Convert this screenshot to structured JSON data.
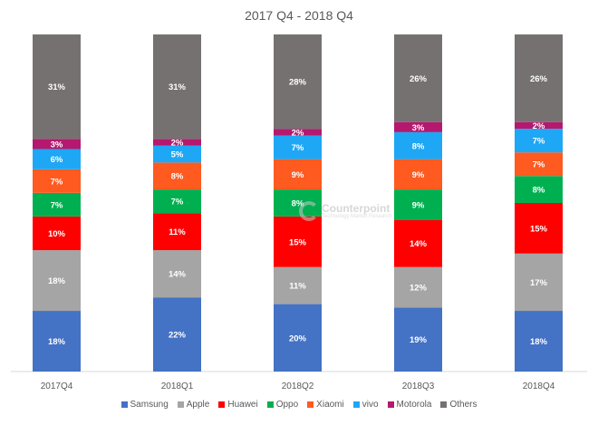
{
  "chart_data": {
    "type": "bar",
    "stacked": true,
    "title": "2017 Q4 - 2018 Q4",
    "categories": [
      "2017Q4",
      "2018Q1",
      "2018Q2",
      "2018Q3",
      "2018Q4"
    ],
    "series": [
      {
        "name": "Samsung",
        "color": "#4472c4",
        "label_color": "#ffffff",
        "values": [
          18,
          22,
          20,
          19,
          18
        ]
      },
      {
        "name": "Apple",
        "color": "#a5a5a5",
        "label_color": "#ffffff",
        "values": [
          18,
          14,
          11,
          12,
          17
        ]
      },
      {
        "name": "Huawei",
        "color": "#ff0000",
        "label_color": "#ffffff",
        "values": [
          10,
          11,
          15,
          14,
          15
        ]
      },
      {
        "name": "Oppo",
        "color": "#00b050",
        "label_color": "#ffffff",
        "values": [
          7,
          7,
          8,
          9,
          8
        ]
      },
      {
        "name": "Xiaomi",
        "color": "#ff5a1f",
        "label_color": "#ffffff",
        "values": [
          7,
          8,
          9,
          9,
          7
        ]
      },
      {
        "name": "vivo",
        "color": "#1ea7f5",
        "label_color": "#ffffff",
        "values": [
          6,
          5,
          7,
          8,
          7
        ]
      },
      {
        "name": "Motorola",
        "color": "#b5186f",
        "label_color": "#ffffff",
        "values": [
          3,
          2,
          2,
          3,
          2
        ]
      },
      {
        "name": "Others",
        "color": "#767171",
        "label_color": "#ffffff",
        "values": [
          31,
          31,
          28,
          26,
          26
        ]
      }
    ],
    "ylim": [
      0,
      100
    ],
    "grid": false,
    "legend_position": "bottom",
    "value_suffix": "%"
  },
  "watermark": {
    "name": "Counterpoint",
    "sub": "Technology Market Research"
  }
}
